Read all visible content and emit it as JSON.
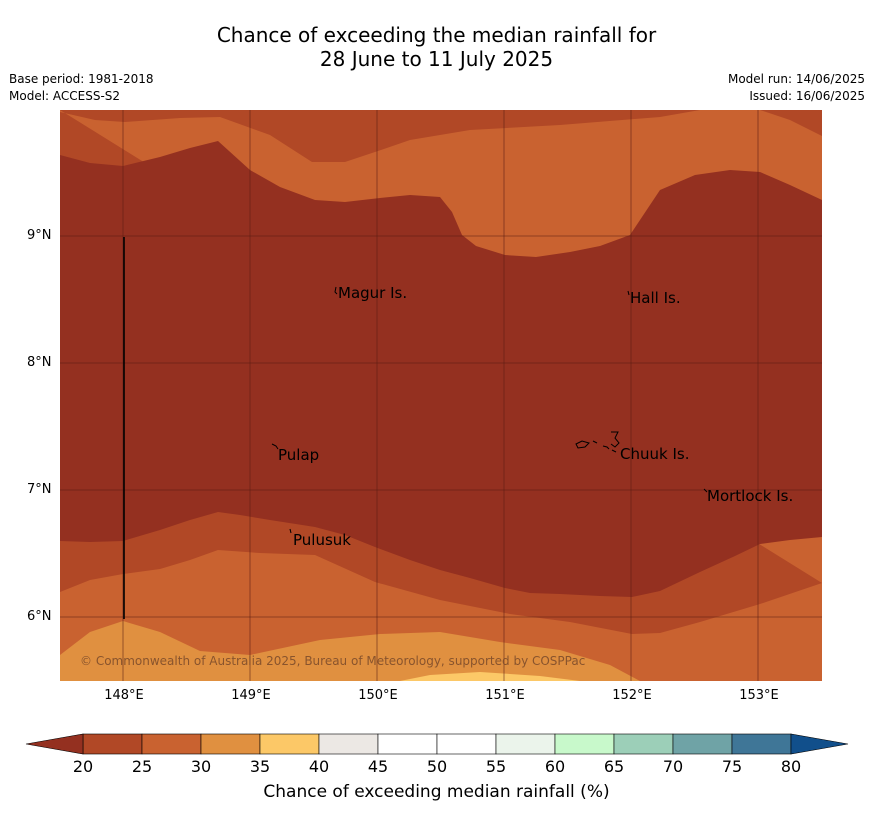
{
  "title": {
    "line1": "Chance of exceeding the median rainfall for",
    "line2": "28 June to 11 July 2025"
  },
  "meta": {
    "base_period": "Base period: 1981-2018",
    "model": "Model: ACCESS-S2",
    "model_run": "Model run: 14/06/2025",
    "issued": "Issued: 16/06/2025"
  },
  "map": {
    "latitude_labels": [
      "9°N",
      "8°N",
      "7°N",
      "6°N"
    ],
    "longitude_labels": [
      "148°E",
      "149°E",
      "150°E",
      "151°E",
      "152°E",
      "153°E"
    ],
    "places": [
      "Magur Is.",
      "Hall Is.",
      "Pulap",
      "Chuuk Is.",
      "Mortlock Is.",
      "Pulusuk"
    ],
    "copyright": "© Commonwealth of Australia 2025, Bureau of Meteorology, supported by COSPPac"
  },
  "colorbar": {
    "title": "Chance of exceeding median rainfall (%)",
    "ticks": [
      "20",
      "25",
      "30",
      "35",
      "40",
      "45",
      "50",
      "55",
      "60",
      "65",
      "70",
      "75",
      "80"
    ],
    "colors": {
      "below_20": "#943020",
      "c20_25": "#b14826",
      "c25_30": "#c96230",
      "c30_35": "#e09040",
      "c35_40": "#fcc867",
      "c40_45": "#ece8e4",
      "c45_50": "#ffffff",
      "c50_55": "#ffffff",
      "c55_60": "#ebf4eb",
      "c60_65": "#c8f9cb",
      "c65_70": "#9ccfb8",
      "c70_75": "#6fa3a6",
      "c75_80": "#3f7697",
      "above_80": "#114f8b"
    }
  }
}
